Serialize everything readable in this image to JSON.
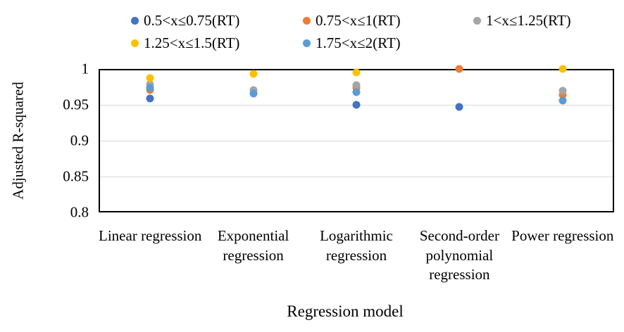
{
  "chart_data": {
    "type": "scatter",
    "title": "",
    "xlabel": "Regression model",
    "ylabel": "Adjusted R-squared",
    "ylim": [
      0.8,
      1.0
    ],
    "yticks": [
      {
        "value": 1.0,
        "label": "1"
      },
      {
        "value": 0.95,
        "label": "0.95"
      },
      {
        "value": 0.9,
        "label": "0.9"
      },
      {
        "value": 0.85,
        "label": "0.85"
      },
      {
        "value": 0.8,
        "label": "0.8"
      }
    ],
    "grid": true,
    "legend_position": "top",
    "categories": [
      "Linear regression",
      "Exponential regression",
      "Logarithmic regression",
      "Second-order polynomial regression",
      "Power regression"
    ],
    "series": [
      {
        "name": "0.5<x≤0.75(RT)",
        "color": "#4472C4",
        "values": [
          0.959,
          null,
          0.95,
          0.947,
          null
        ]
      },
      {
        "name": "0.75<x≤1(RT)",
        "color": "#ED7D31",
        "values": [
          0.971,
          null,
          0.974,
          1.0,
          0.964
        ]
      },
      {
        "name": "1<x≤1.25(RT)",
        "color": "#A5A5A5",
        "values": [
          0.978,
          0.971,
          0.977,
          null,
          0.97
        ]
      },
      {
        "name": "1.25<x≤1.5(RT)",
        "color": "#FFC000",
        "values": [
          0.987,
          0.993,
          0.995,
          null,
          1.0
        ]
      },
      {
        "name": "1.75<x≤2(RT)",
        "color": "#5B9BD5",
        "values": [
          0.974,
          0.966,
          0.968,
          null,
          0.956
        ]
      }
    ]
  }
}
